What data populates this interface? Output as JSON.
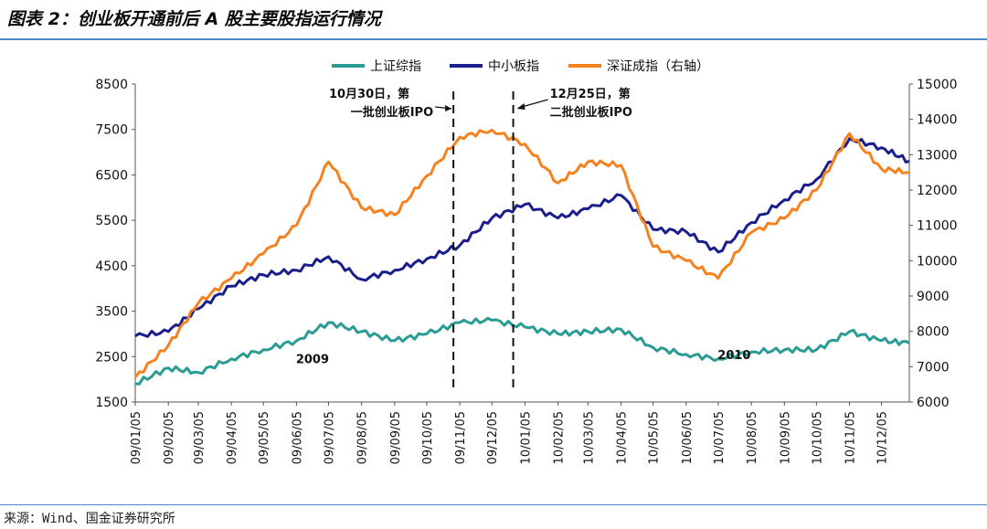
{
  "title": "图表 2：创业板开通前后 A 股主要股指运行情况",
  "source": "来源：Wind、国金证券研究所",
  "chart_data": {
    "type": "line",
    "title": "图表 2：创业板开通前后 A 股主要股指运行情况",
    "xlabel": "",
    "ylabel_left": "",
    "ylabel_right": "",
    "ylim_left": [
      1500,
      8500
    ],
    "ylim_right": [
      6000,
      15000
    ],
    "yticks_left": [
      "8500",
      "7500",
      "6500",
      "5500",
      "4500",
      "3500",
      "2500",
      "1500"
    ],
    "yticks_right": [
      "15000",
      "14000",
      "13000",
      "12000",
      "11000",
      "10000",
      "9000",
      "8000",
      "7000",
      "6000"
    ],
    "x": [
      "09/01/05",
      "09/02/05",
      "09/03/05",
      "09/04/05",
      "09/05/05",
      "09/06/05",
      "09/07/05",
      "09/08/05",
      "09/09/05",
      "09/10/05",
      "09/11/05",
      "09/12/05",
      "10/01/05",
      "10/02/05",
      "10/03/05",
      "10/04/05",
      "10/05/05",
      "10/06/05",
      "10/07/05",
      "10/08/05",
      "10/09/05",
      "10/10/05",
      "10/11/05",
      "10/12/05",
      "10/12/31"
    ],
    "xticks": [
      "09/01/05",
      "09/02/05",
      "09/03/05",
      "09/04/05",
      "09/05/05",
      "09/06/05",
      "09/07/05",
      "09/08/05",
      "09/09/05",
      "09/10/05",
      "09/11/05",
      "09/12/05",
      "10/01/05",
      "10/02/05",
      "10/03/05",
      "10/04/05",
      "10/05/05",
      "10/06/05",
      "10/07/05",
      "10/08/05",
      "10/09/05",
      "10/10/05",
      "10/11/05",
      "10/12/05"
    ],
    "legend_position": "top",
    "series": [
      {
        "name": "上证综指",
        "axis": "left",
        "color": "#2a9b95",
        "values": [
          1900,
          2250,
          2150,
          2450,
          2650,
          2850,
          3250,
          3050,
          2850,
          3000,
          3250,
          3300,
          3150,
          3000,
          3050,
          3100,
          2700,
          2550,
          2450,
          2600,
          2650,
          2650,
          3050,
          2850,
          2800
        ]
      },
      {
        "name": "中小板指",
        "axis": "left",
        "color": "#1a1f8c",
        "values": [
          2950,
          3050,
          3550,
          4050,
          4300,
          4400,
          4700,
          4200,
          4400,
          4650,
          4950,
          5550,
          5850,
          5550,
          5750,
          6050,
          5300,
          5250,
          4800,
          5450,
          5950,
          6400,
          7300,
          7100,
          6800
        ]
      },
      {
        "name": "深证成指（右轴）",
        "axis": "right",
        "color": "#f5821f",
        "values": [
          6700,
          7600,
          8800,
          9500,
          10200,
          11000,
          12800,
          11500,
          11300,
          12400,
          13500,
          13700,
          13300,
          12200,
          12800,
          12700,
          10400,
          10000,
          9500,
          10800,
          11200,
          12000,
          13600,
          12600,
          12500
        ]
      }
    ],
    "annotations": [
      {
        "text_line1": "10月30日，第",
        "text_line2": "一批创业板IPO",
        "x": "09/10/30"
      },
      {
        "text_line1": "12月25日，第",
        "text_line2": "二批创业板IPO",
        "x": "09/12/25"
      },
      {
        "text": "2009",
        "x": "09/06/20",
        "y": 2350
      },
      {
        "text": "2010",
        "x": "10/07/20",
        "y": 2450
      }
    ]
  }
}
